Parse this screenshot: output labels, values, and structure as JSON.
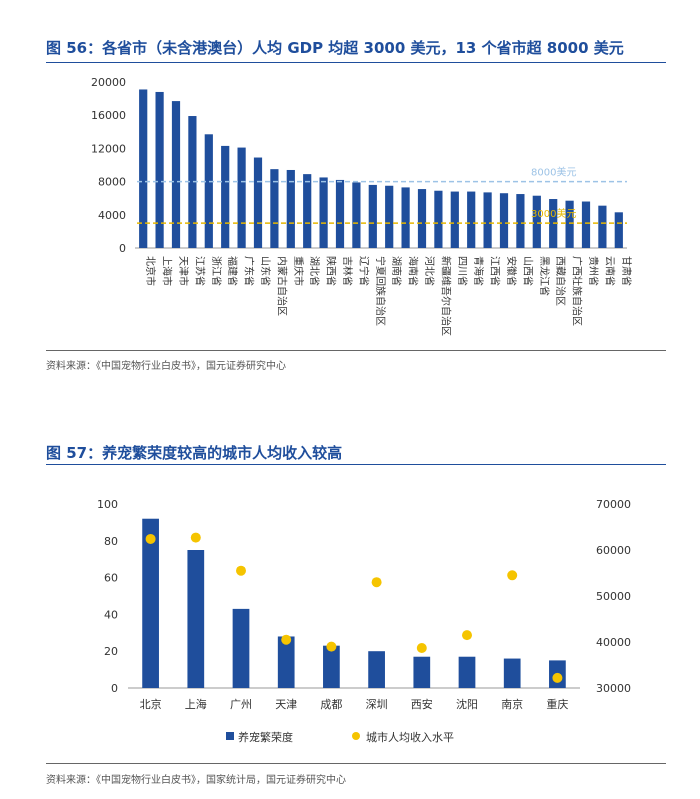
{
  "fig56": {
    "title": "图 56：各省市（未含港澳台）人均 GDP 均超  3000 美元，13 个省市超 8000 美元",
    "source": "资料来源：《中国宠物行业白皮书》，国元证券研究中心",
    "ref_lines": [
      {
        "label": "8000美元",
        "value": 8000,
        "color": "#9dc3e6"
      },
      {
        "label": "3000美元",
        "value": 3000,
        "color": "#e6b800"
      }
    ]
  },
  "fig57": {
    "title": "图 57：养宠繁荣度较高的城市人均收入较高",
    "source": "资料来源：《中国宠物行业白皮书》，国家统计局，国元证券研究中心",
    "legend_bar": "养宠繁荣度",
    "legend_dot": "城市人均收入水平"
  },
  "colors": {
    "bar": "#1f4e9c",
    "dot": "#f5c400",
    "title": "#1f4e9c"
  },
  "chart_data": [
    {
      "type": "bar",
      "title": "图 56：各省市（未含港澳台）人均 GDP 均超  3000 美元，13 个省市超 8000 美元",
      "categories": [
        "北京市",
        "上海市",
        "天津市",
        "江苏省",
        "浙江省",
        "福建省",
        "广东省",
        "山东省",
        "内蒙古自治区",
        "重庆市",
        "湖北省",
        "陕西省",
        "吉林省",
        "辽宁省",
        "宁夏回族自治区",
        "湖南省",
        "海南省",
        "河北省",
        "新疆维吾尔自治区",
        "四川省",
        "青海省",
        "江西省",
        "安徽省",
        "山西省",
        "黑龙江省",
        "西藏自治区",
        "广西壮族自治区",
        "贵州省",
        "云南省",
        "甘肃省"
      ],
      "values": [
        19100,
        18800,
        17700,
        15900,
        13700,
        12300,
        12100,
        10900,
        9500,
        9400,
        8900,
        8500,
        8200,
        7900,
        7600,
        7500,
        7300,
        7100,
        6900,
        6800,
        6800,
        6700,
        6600,
        6500,
        6300,
        5900,
        5700,
        5600,
        5100,
        4300
      ],
      "ylim": [
        0,
        20000
      ],
      "yticks": [
        "0",
        "4000",
        "8000",
        "12000",
        "16000",
        "20000"
      ],
      "reference_lines": [
        8000,
        3000
      ],
      "grid": false,
      "legend": "none"
    },
    {
      "type": "bar",
      "title": "图 57：养宠繁荣度较高的城市人均收入较高",
      "categories": [
        "北京",
        "上海",
        "广州",
        "天津",
        "成都",
        "深圳",
        "西安",
        "沈阳",
        "南京",
        "重庆"
      ],
      "series": [
        {
          "name": "养宠繁荣度",
          "type": "bar",
          "axis": "left",
          "values": [
            92,
            75,
            43,
            28,
            23,
            20,
            17,
            17,
            16,
            15
          ]
        },
        {
          "name": "城市人均收入水平",
          "type": "scatter",
          "axis": "right",
          "values": [
            62400,
            62700,
            55500,
            40500,
            39000,
            53000,
            38700,
            41500,
            54500,
            32200
          ]
        }
      ],
      "ylim_left": [
        0,
        100
      ],
      "ylim_right": [
        30000,
        70000
      ],
      "yticks_left": [
        "0",
        "20",
        "40",
        "60",
        "80",
        "100"
      ],
      "yticks_right": [
        "30000",
        "40000",
        "50000",
        "60000",
        "70000"
      ],
      "grid": false,
      "legend": "bottom"
    }
  ]
}
